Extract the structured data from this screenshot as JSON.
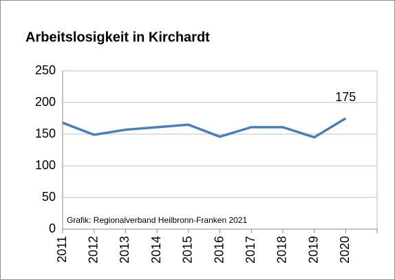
{
  "chart_data": {
    "type": "line",
    "title": "Arbeitslosigkeit in Kirchardt",
    "source": "Grafik: Regionalverband Heilbronn-Franken 2021",
    "categories": [
      "2011",
      "2012",
      "2013",
      "2014",
      "2015",
      "2016",
      "2017",
      "2018",
      "2019",
      "2020"
    ],
    "values": [
      168,
      149,
      157,
      161,
      165,
      146,
      161,
      161,
      145,
      175
    ],
    "labeled_points": [
      9
    ],
    "color": "#4a7ebb",
    "ylim": [
      0,
      250
    ],
    "yticks": [
      0,
      50,
      100,
      150,
      200,
      250
    ],
    "grid": true
  }
}
